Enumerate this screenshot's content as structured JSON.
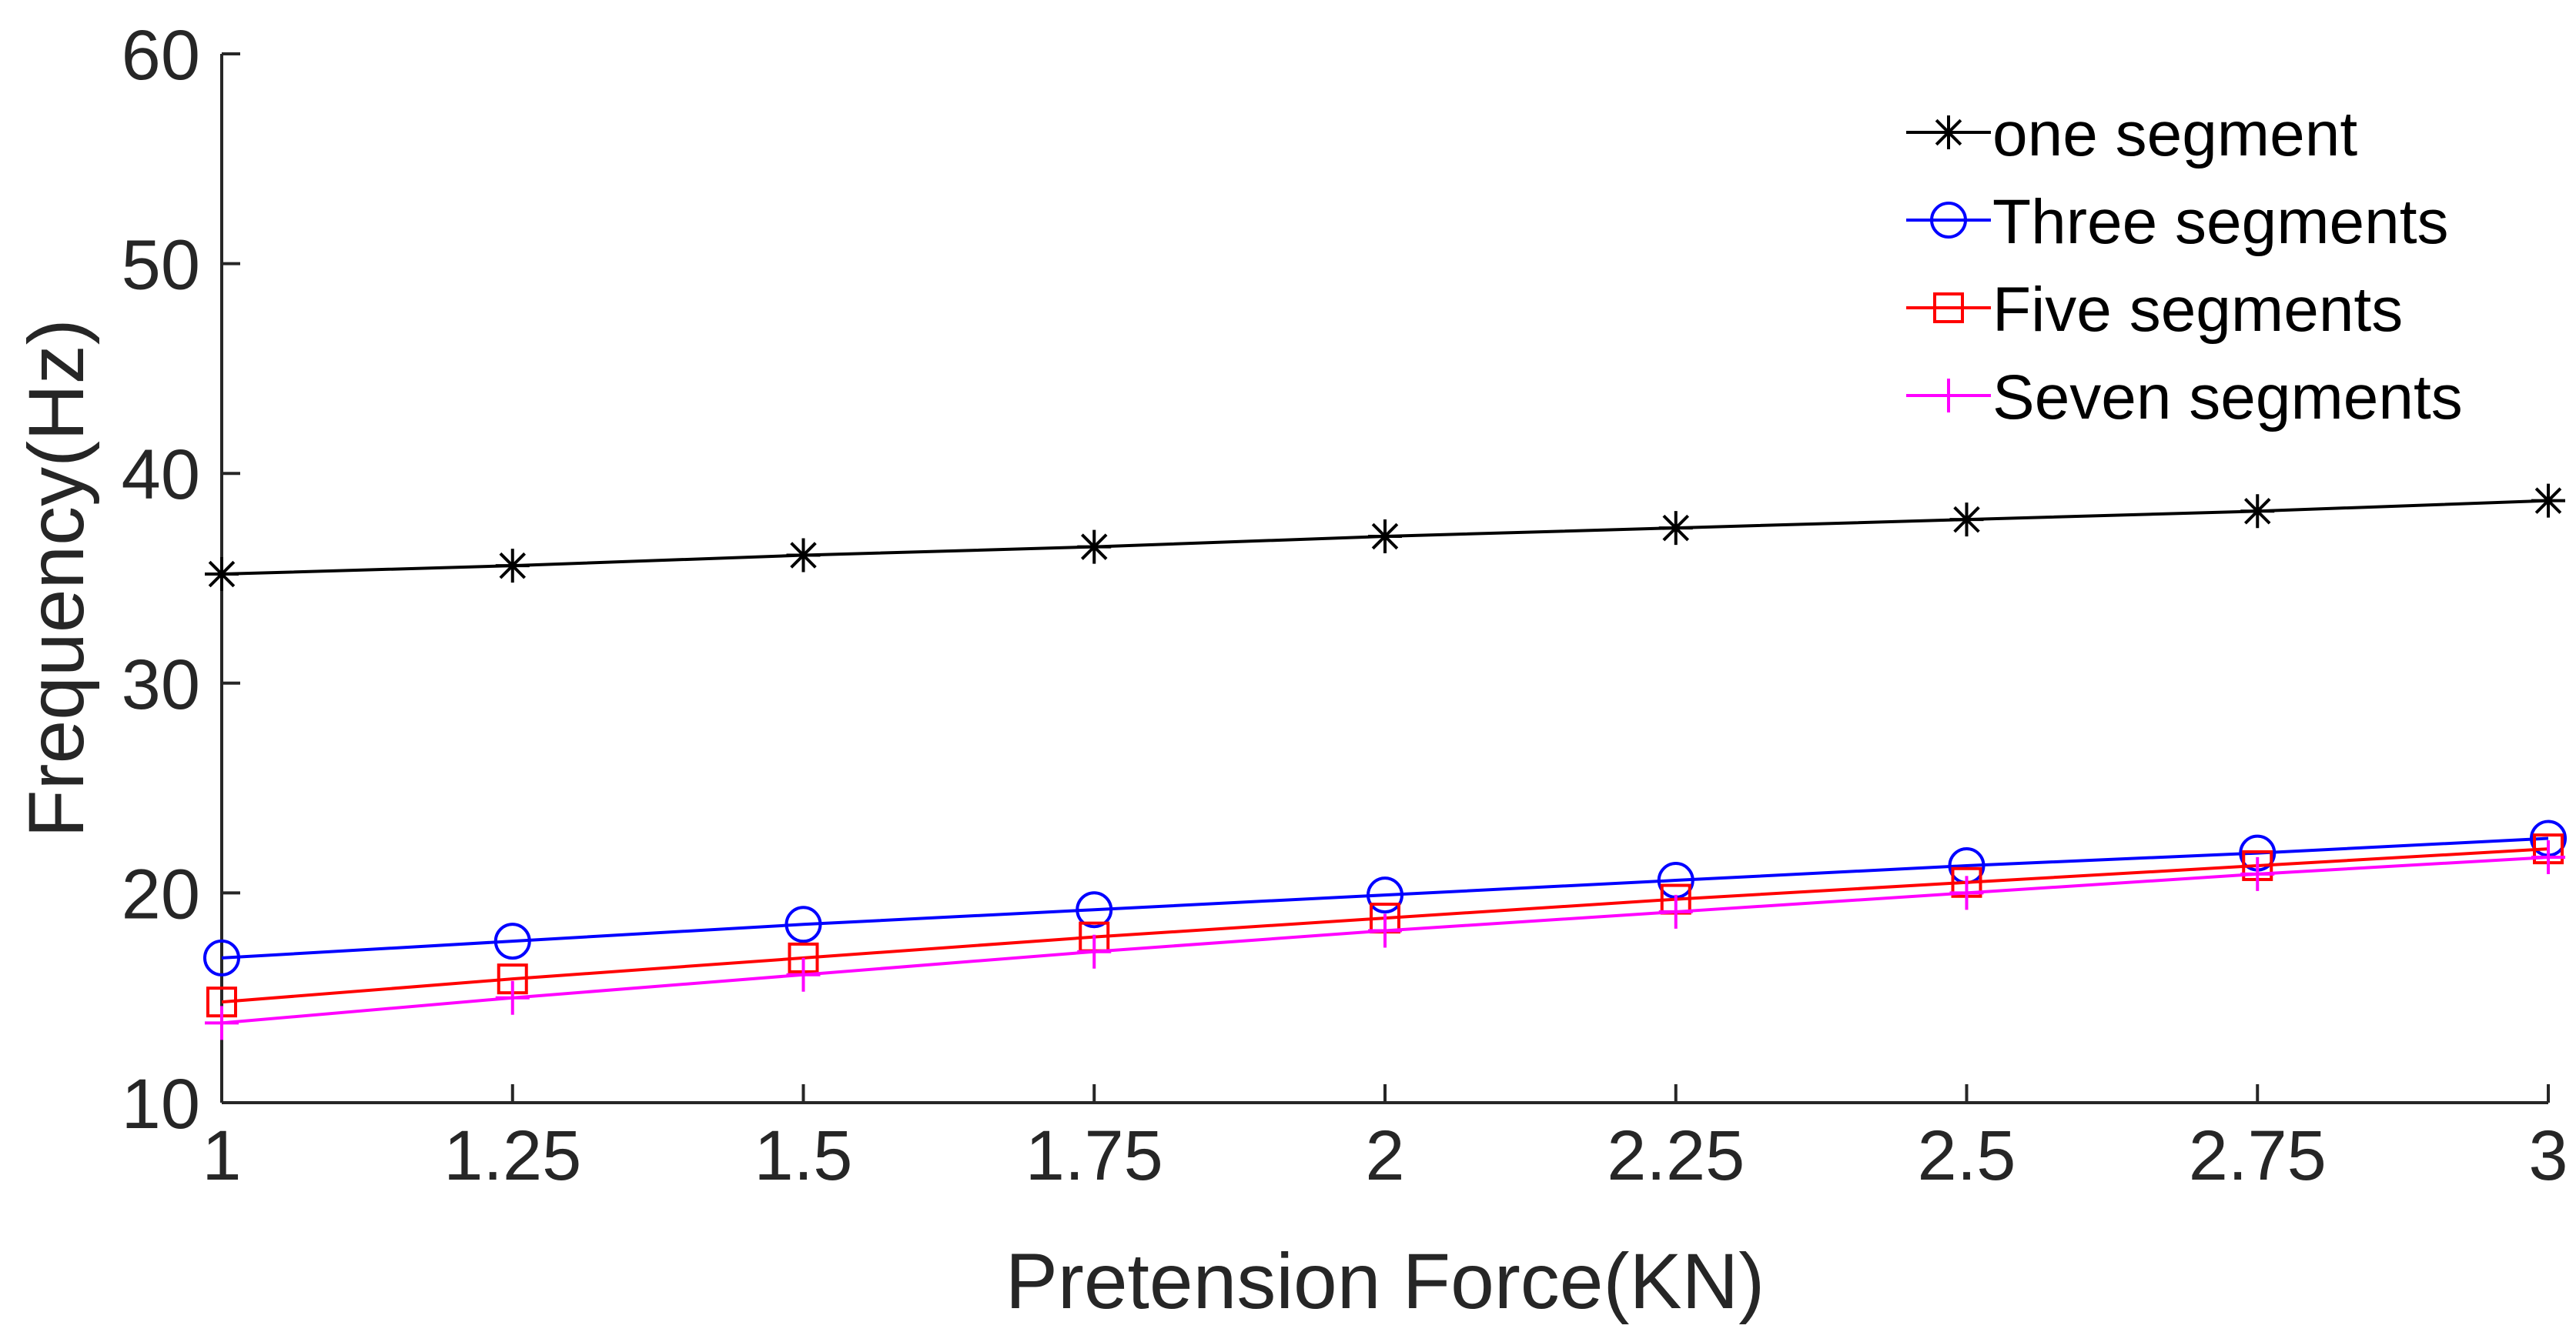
{
  "chart_data": {
    "type": "line",
    "title": "",
    "xlabel": "Pretension Force(KN)",
    "ylabel": "Frequency(Hz)",
    "xlim": [
      1,
      3
    ],
    "ylim": [
      10,
      60
    ],
    "x": [
      1,
      1.25,
      1.5,
      1.75,
      2,
      2.25,
      2.5,
      2.75,
      3
    ],
    "x_tick_labels": [
      "1",
      "1.25",
      "1.5",
      "1.75",
      "2",
      "2.25",
      "2.5",
      "2.75",
      "3"
    ],
    "y_ticks": [
      10,
      20,
      30,
      40,
      50,
      60
    ],
    "y_tick_labels": [
      "10",
      "20",
      "30",
      "40",
      "50",
      "60"
    ],
    "grid": false,
    "legend_position": "top-right",
    "series": [
      {
        "name": "one segment",
        "color": "#000000",
        "marker": "asterisk",
        "values": [
          35.2,
          35.6,
          36.1,
          36.5,
          37.0,
          37.4,
          37.8,
          38.2,
          38.7
        ]
      },
      {
        "name": "Three segments",
        "color": "#0000ff",
        "marker": "circle",
        "values": [
          16.9,
          17.7,
          18.5,
          19.2,
          19.9,
          20.6,
          21.3,
          21.9,
          22.6
        ]
      },
      {
        "name": "Five segments",
        "color": "#ff0000",
        "marker": "square",
        "values": [
          14.8,
          15.9,
          16.9,
          17.9,
          18.8,
          19.7,
          20.5,
          21.3,
          22.1
        ]
      },
      {
        "name": "Seven segments",
        "color": "#ff00ff",
        "marker": "plus",
        "values": [
          13.8,
          15.0,
          16.1,
          17.2,
          18.2,
          19.1,
          20.0,
          20.9,
          21.7
        ]
      }
    ]
  }
}
